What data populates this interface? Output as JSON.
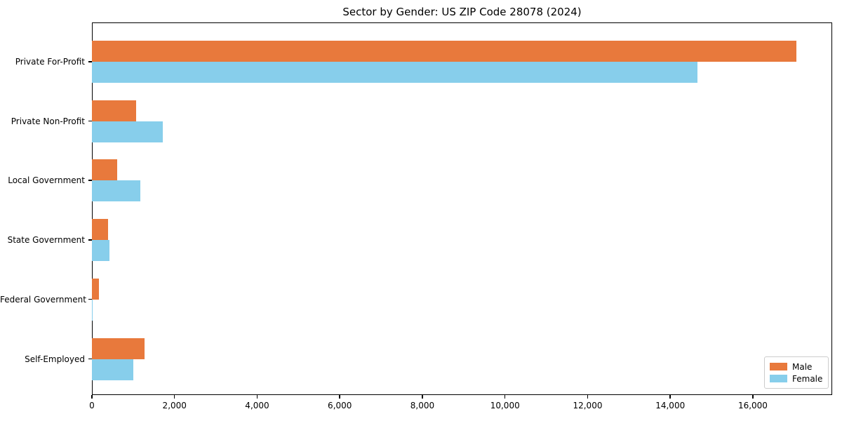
{
  "chart_data": {
    "type": "bar",
    "orientation": "horizontal",
    "title": "Sector by Gender: US ZIP Code 28078 (2024)",
    "categories": [
      "Private For-Profit",
      "Private Non-Profit",
      "Local Government",
      "State Government",
      "Federal Government",
      "Self-Employed"
    ],
    "series": [
      {
        "name": "Male",
        "color": "#E8793C",
        "values": [
          17050,
          1070,
          610,
          390,
          175,
          1270
        ]
      },
      {
        "name": "Female",
        "color": "#87CEEB",
        "values": [
          14660,
          1715,
          1170,
          420,
          20,
          1000
        ]
      }
    ],
    "xlabel": "",
    "ylabel": "",
    "xlim": [
      0,
      17920
    ],
    "xticks": [
      0,
      2000,
      4000,
      6000,
      8000,
      10000,
      12000,
      14000,
      16000
    ],
    "xtick_labels": [
      "0",
      "2,000",
      "4,000",
      "6,000",
      "8,000",
      "10,000",
      "12,000",
      "14,000",
      "16,000"
    ],
    "grid": false,
    "legend": {
      "position": "lower right",
      "entries": [
        {
          "label": "Male",
          "color": "#E8793C"
        },
        {
          "label": "Female",
          "color": "#87CEEB"
        }
      ]
    }
  }
}
